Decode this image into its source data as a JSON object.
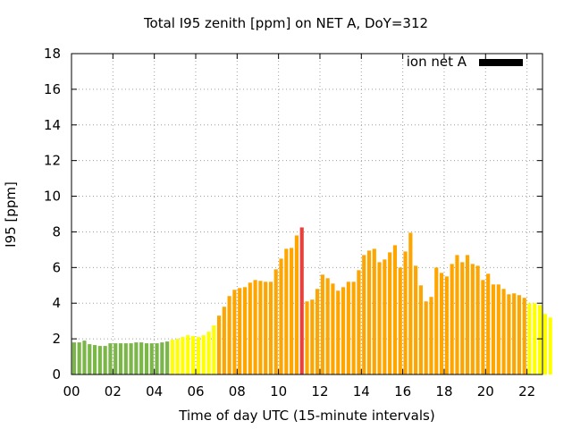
{
  "chart_data": {
    "type": "bar",
    "title": "Total I95 zenith [ppm] on NET A, DoY=312",
    "xlabel": "Time of day UTC (15-minute intervals)",
    "ylabel": "I95 [ppm]",
    "xlim": [
      0,
      22.75
    ],
    "ylim": [
      0,
      18
    ],
    "xticks": [
      "00",
      "02",
      "04",
      "06",
      "08",
      "10",
      "12",
      "14",
      "16",
      "18",
      "20",
      "22"
    ],
    "yticks": [
      "0",
      "2",
      "4",
      "6",
      "8",
      "10",
      "12",
      "14",
      "16",
      "18"
    ],
    "grid": true,
    "legend": {
      "label": "ion net A",
      "color": "#000000",
      "position": "top-right"
    },
    "bar_interval_minutes": 15,
    "values": [
      1.8,
      1.8,
      1.9,
      1.7,
      1.65,
      1.6,
      1.6,
      1.75,
      1.75,
      1.75,
      1.75,
      1.75,
      1.8,
      1.8,
      1.75,
      1.75,
      1.75,
      1.8,
      1.85,
      1.95,
      2.0,
      2.1,
      2.2,
      2.15,
      2.1,
      2.2,
      2.4,
      2.75,
      3.3,
      3.8,
      4.4,
      4.75,
      4.85,
      4.9,
      5.15,
      5.3,
      5.25,
      5.2,
      5.2,
      5.9,
      6.5,
      7.05,
      7.1,
      7.8,
      8.25,
      4.1,
      4.2,
      4.8,
      5.6,
      5.4,
      5.1,
      4.7,
      4.9,
      5.2,
      5.2,
      5.85,
      6.7,
      6.95,
      7.05,
      6.3,
      6.45,
      6.85,
      7.25,
      6.0,
      6.9,
      7.95,
      6.1,
      5.0,
      4.1,
      4.35,
      6.0,
      5.7,
      5.5,
      6.2,
      6.7,
      6.3,
      6.7,
      6.2,
      6.1,
      5.3,
      5.65,
      5.05,
      5.05,
      4.8,
      4.5,
      4.55,
      4.45,
      4.3,
      4.0,
      4.0,
      3.9,
      3.4,
      3.2
    ],
    "colors": [
      "#7ab648",
      "#7ab648",
      "#7ab648",
      "#7ab648",
      "#7ab648",
      "#7ab648",
      "#7ab648",
      "#7ab648",
      "#7ab648",
      "#7ab648",
      "#7ab648",
      "#7ab648",
      "#7ab648",
      "#7ab648",
      "#7ab648",
      "#7ab648",
      "#7ab648",
      "#7ab648",
      "#7ab648",
      "#ffff00",
      "#ffff00",
      "#ffff00",
      "#ffff00",
      "#ffff00",
      "#ffff00",
      "#ffff00",
      "#ffff00",
      "#ffff00",
      "#ffa500",
      "#ffa500",
      "#ffa500",
      "#ffa500",
      "#ffa500",
      "#ffa500",
      "#ffa500",
      "#ffa500",
      "#ffa500",
      "#ffa500",
      "#ffa500",
      "#ffa500",
      "#ffa500",
      "#ffa500",
      "#ffa500",
      "#ffa500",
      "#e8413c",
      "#ffa500",
      "#ffa500",
      "#ffa500",
      "#ffa500",
      "#ffa500",
      "#ffa500",
      "#ffa500",
      "#ffa500",
      "#ffa500",
      "#ffa500",
      "#ffa500",
      "#ffa500",
      "#ffa500",
      "#ffa500",
      "#ffa500",
      "#ffa500",
      "#ffa500",
      "#ffa500",
      "#ffa500",
      "#ffa500",
      "#ffa500",
      "#ffa500",
      "#ffa500",
      "#ffa500",
      "#ffa500",
      "#ffa500",
      "#ffa500",
      "#ffa500",
      "#ffa500",
      "#ffa500",
      "#ffa500",
      "#ffa500",
      "#ffa500",
      "#ffa500",
      "#ffa500",
      "#ffa500",
      "#ffa500",
      "#ffa500",
      "#ffa500",
      "#ffa500",
      "#ffa500",
      "#ffa500",
      "#ffa500",
      "#ffff00",
      "#ffff00",
      "#ffff00",
      "#ffff00",
      "#ffff00"
    ],
    "series_colors": {
      "low": "#7ab648",
      "moderate": "#ffff00",
      "elevated": "#ffa500",
      "high": "#e8413c"
    }
  }
}
